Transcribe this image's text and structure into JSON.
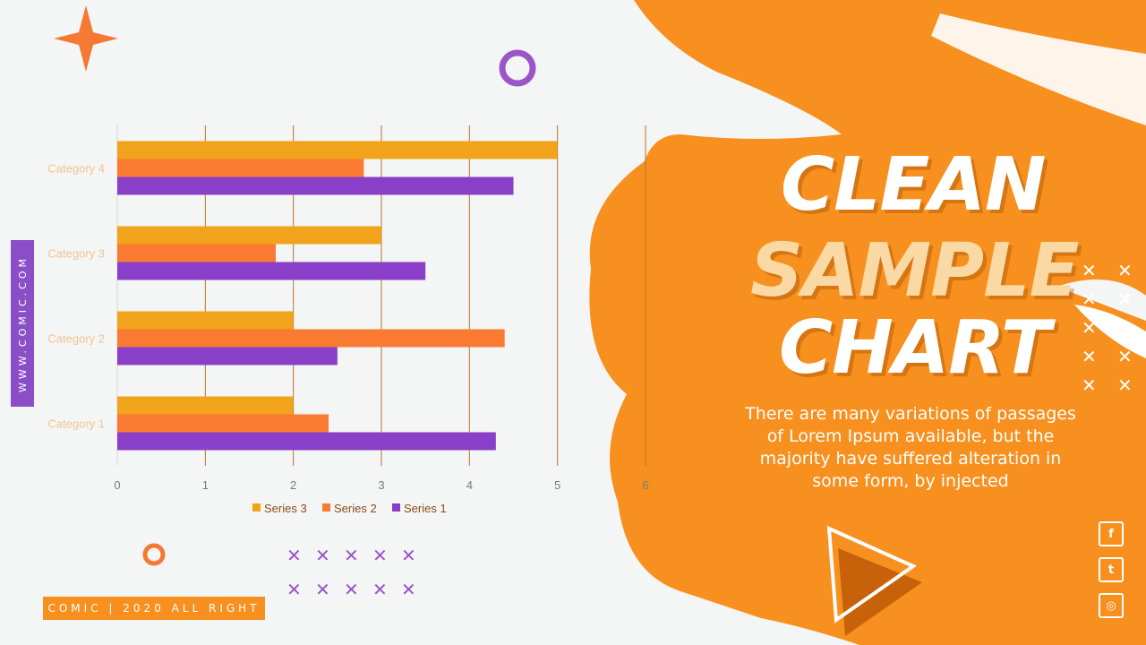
{
  "side_tab": "WWW.COMIC.COM",
  "footer": "COMIC | 2020 ALL RIGHT",
  "title": {
    "line1": "CLEAN",
    "line2": "SAMPLE",
    "line3": "CHART"
  },
  "description": "There are many variations of passages of Lorem Ipsum available, but the majority have suffered alteration in some form, by injected",
  "social": {
    "facebook": "f",
    "twitter": "t",
    "instagram": "◎"
  },
  "colors": {
    "orange": "#f7901e",
    "purple": "#8a3fc9",
    "series3": "#f2a31c",
    "series2": "#fa7a32",
    "background": "#f4f5f5"
  },
  "chart_data": {
    "type": "bar",
    "orientation": "horizontal",
    "categories": [
      "Category 1",
      "Category 2",
      "Category 3",
      "Category 4"
    ],
    "series": [
      {
        "name": "Series 1",
        "values": [
          4.3,
          2.5,
          3.5,
          4.5
        ],
        "color": "#8a3fc9"
      },
      {
        "name": "Series 2",
        "values": [
          2.4,
          4.4,
          1.8,
          2.8
        ],
        "color": "#fa7a32"
      },
      {
        "name": "Series 3",
        "values": [
          2,
          2,
          3,
          5
        ],
        "color": "#f2a31c"
      }
    ],
    "x_ticks": [
      "0",
      "1",
      "2",
      "3",
      "4",
      "5",
      "6"
    ],
    "xlim": [
      0,
      6
    ],
    "grid": true,
    "legend_position": "bottom"
  }
}
